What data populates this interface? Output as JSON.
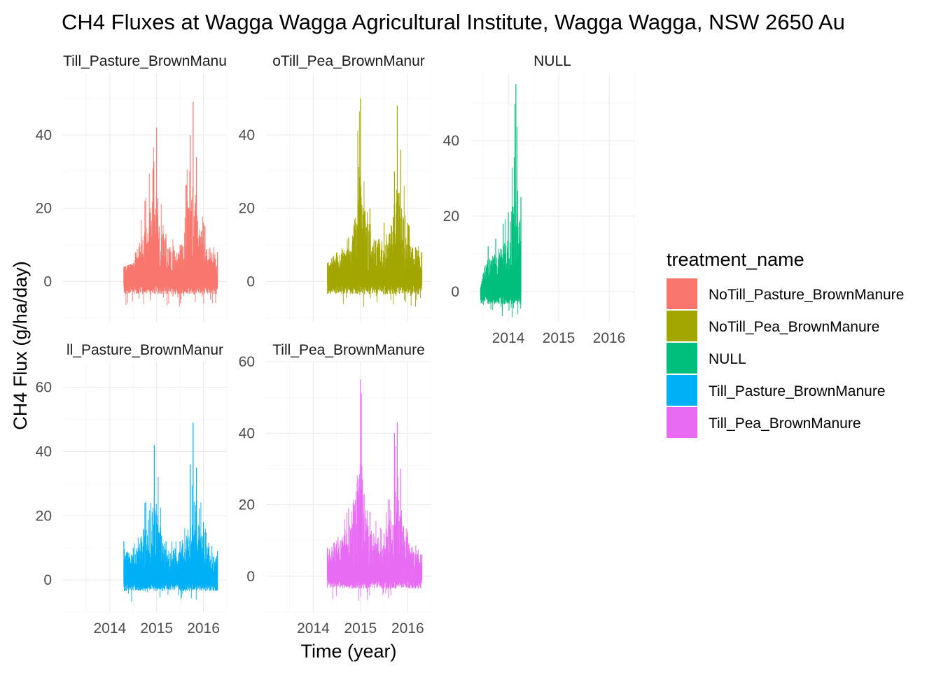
{
  "chart_data": {
    "type": "line",
    "title": "CH4 Fluxes at Wagga Wagga Agricultural Institute, Wagga Wagga, NSW 2650 Au",
    "xlabel": "Time (year)",
    "ylabel": "CH4 Flux (g/ha/day)",
    "legend_title": "treatment_name",
    "legend_position": "right",
    "grid": true,
    "facet_scales": "free",
    "panels": [
      {
        "strip": "Till_Pasture_BrownManu",
        "series": "NoTill_Pasture_BrownManure",
        "color": "#F8766D",
        "xlim": [
          2013.0,
          2016.5
        ],
        "ylim": [
          -11,
          57
        ],
        "yticks": [
          0,
          20,
          40
        ],
        "xticks": [],
        "points": [
          [
            2014.3,
            4
          ],
          [
            2014.5,
            5
          ],
          [
            2014.75,
            22
          ],
          [
            2015.0,
            42
          ],
          [
            2015.2,
            13
          ],
          [
            2015.5,
            10
          ],
          [
            2015.72,
            40
          ],
          [
            2015.78,
            49
          ],
          [
            2015.85,
            34
          ],
          [
            2016.0,
            16
          ],
          [
            2016.3,
            8
          ]
        ]
      },
      {
        "strip": "oTill_Pea_BrownManur",
        "series": "NoTill_Pea_BrownManure",
        "color": "#A3A500",
        "xlim": [
          2013.0,
          2016.5
        ],
        "ylim": [
          -11,
          57
        ],
        "yticks": [
          0,
          20,
          40
        ],
        "xticks": [],
        "points": [
          [
            2014.3,
            5
          ],
          [
            2014.5,
            8
          ],
          [
            2014.75,
            12
          ],
          [
            2015.0,
            50
          ],
          [
            2015.2,
            20
          ],
          [
            2015.5,
            16
          ],
          [
            2015.72,
            30
          ],
          [
            2015.78,
            48
          ],
          [
            2015.85,
            36
          ],
          [
            2016.0,
            16
          ],
          [
            2016.3,
            8
          ]
        ]
      },
      {
        "strip": "NULL",
        "series": "NULL",
        "color": "#00BF7D",
        "xlim": [
          2013.25,
          2016.5
        ],
        "ylim": [
          -8,
          58
        ],
        "yticks": [
          0,
          20,
          40
        ],
        "xticks": [
          2014,
          2015,
          2016
        ],
        "points": [
          [
            2013.45,
            1
          ],
          [
            2013.6,
            12
          ],
          [
            2013.75,
            14
          ],
          [
            2013.9,
            18
          ],
          [
            2014.0,
            21
          ],
          [
            2014.15,
            55
          ],
          [
            2014.25,
            25
          ]
        ]
      },
      {
        "strip": "ll_Pasture_BrownManur",
        "series": "Till_Pasture_BrownManure",
        "color": "#00B0F6",
        "xlim": [
          2013.0,
          2016.5
        ],
        "ylim": [
          -10,
          68
        ],
        "yticks": [
          0,
          20,
          40,
          60
        ],
        "xticks": [
          2014,
          2015,
          2016
        ],
        "points": [
          [
            2014.3,
            12
          ],
          [
            2014.5,
            10
          ],
          [
            2014.75,
            24
          ],
          [
            2014.95,
            42
          ],
          [
            2015.2,
            12
          ],
          [
            2015.5,
            12
          ],
          [
            2015.72,
            36
          ],
          [
            2015.78,
            49
          ],
          [
            2015.85,
            35
          ],
          [
            2016.0,
            18
          ],
          [
            2016.3,
            9
          ]
        ]
      },
      {
        "strip": "Till_Pea_BrownManure",
        "series": "Till_Pea_BrownManure",
        "color": "#E76BF3",
        "xlim": [
          2013.0,
          2016.5
        ],
        "ylim": [
          -10,
          60
        ],
        "yticks": [
          0,
          20,
          40,
          60
        ],
        "xticks": [
          2014,
          2015,
          2016
        ],
        "points": [
          [
            2014.3,
            8
          ],
          [
            2014.5,
            10
          ],
          [
            2014.75,
            19
          ],
          [
            2015.0,
            55
          ],
          [
            2015.2,
            18
          ],
          [
            2015.5,
            12
          ],
          [
            2015.72,
            40
          ],
          [
            2015.78,
            43
          ],
          [
            2015.85,
            30
          ],
          [
            2016.0,
            12
          ],
          [
            2016.3,
            6
          ]
        ]
      }
    ],
    "legend": [
      {
        "label": "NoTill_Pasture_BrownManure",
        "color": "#F8766D"
      },
      {
        "label": "NoTill_Pea_BrownManure",
        "color": "#A3A500"
      },
      {
        "label": "NULL",
        "color": "#00BF7D"
      },
      {
        "label": "Till_Pasture_BrownManure",
        "color": "#00B0F6"
      },
      {
        "label": "Till_Pea_BrownManure",
        "color": "#E76BF3"
      }
    ]
  }
}
